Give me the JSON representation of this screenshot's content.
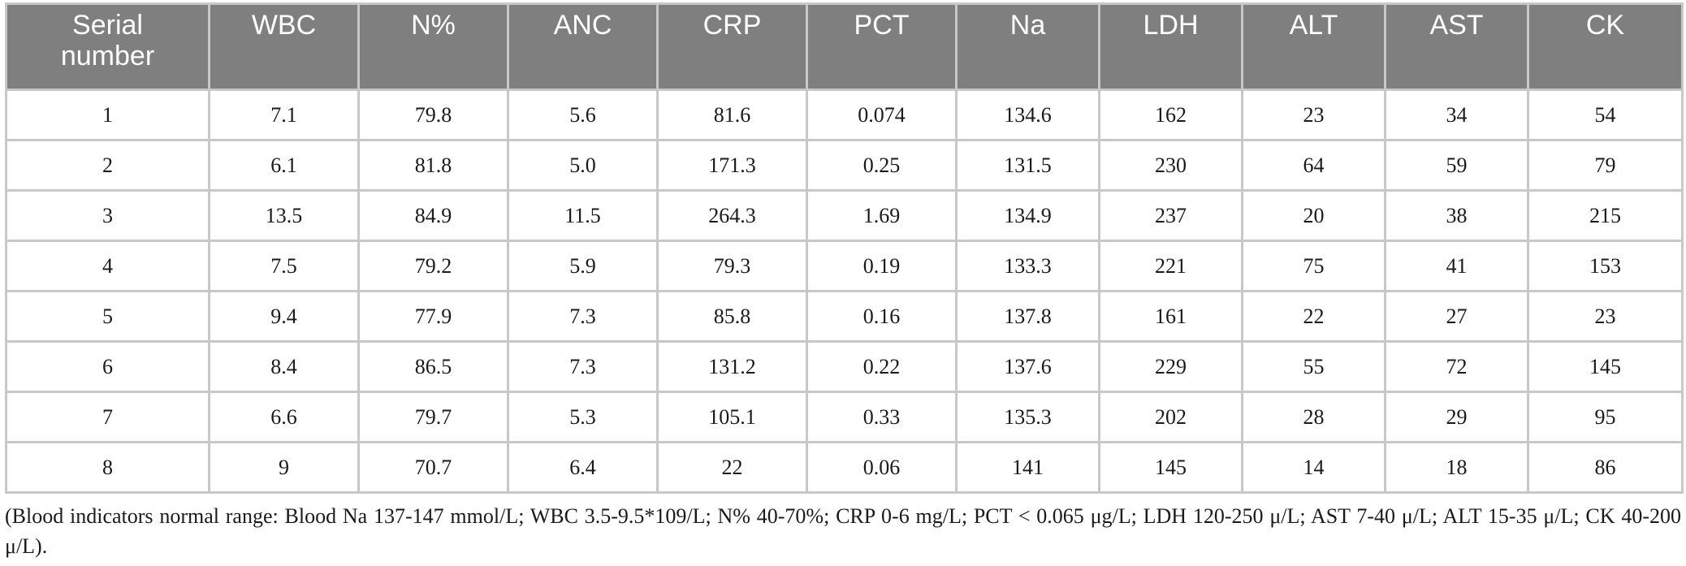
{
  "table": {
    "headers": [
      "Serial\nnumber",
      "WBC",
      "N%",
      "ANC",
      "CRP",
      "PCT",
      "Na",
      "LDH",
      "ALT",
      "AST",
      "CK"
    ],
    "rows": [
      [
        "1",
        "7.1",
        "79.8",
        "5.6",
        "81.6",
        "0.074",
        "134.6",
        "162",
        "23",
        "34",
        "54"
      ],
      [
        "2",
        "6.1",
        "81.8",
        "5.0",
        "171.3",
        "0.25",
        "131.5",
        "230",
        "64",
        "59",
        "79"
      ],
      [
        "3",
        "13.5",
        "84.9",
        "11.5",
        "264.3",
        "1.69",
        "134.9",
        "237",
        "20",
        "38",
        "215"
      ],
      [
        "4",
        "7.5",
        "79.2",
        "5.9",
        "79.3",
        "0.19",
        "133.3",
        "221",
        "75",
        "41",
        "153"
      ],
      [
        "5",
        "9.4",
        "77.9",
        "7.3",
        "85.8",
        "0.16",
        "137.8",
        "161",
        "22",
        "27",
        "23"
      ],
      [
        "6",
        "8.4",
        "86.5",
        "7.3",
        "131.2",
        "0.22",
        "137.6",
        "229",
        "55",
        "72",
        "145"
      ],
      [
        "7",
        "6.6",
        "79.7",
        "5.3",
        "105.1",
        "0.33",
        "135.3",
        "202",
        "28",
        "29",
        "95"
      ],
      [
        "8",
        "9",
        "70.7",
        "6.4",
        "22",
        "0.06",
        "141",
        "145",
        "14",
        "18",
        "86"
      ]
    ]
  },
  "footnote": "(Blood indicators normal range: Blood Na 137-147 mmol/L; WBC 3.5-9.5*109/L; N% 40-70%; CRP 0-6 mg/L; PCT < 0.065 μg/L; LDH 120-250 μ/L; AST 7-40 μ/L; ALT 15-35 μ/L; CK 40-200 μ/L).",
  "colors": {
    "header_background": "#7f7f7f",
    "header_text": "#ffffff",
    "grid_lines": "#c8c8c8"
  }
}
